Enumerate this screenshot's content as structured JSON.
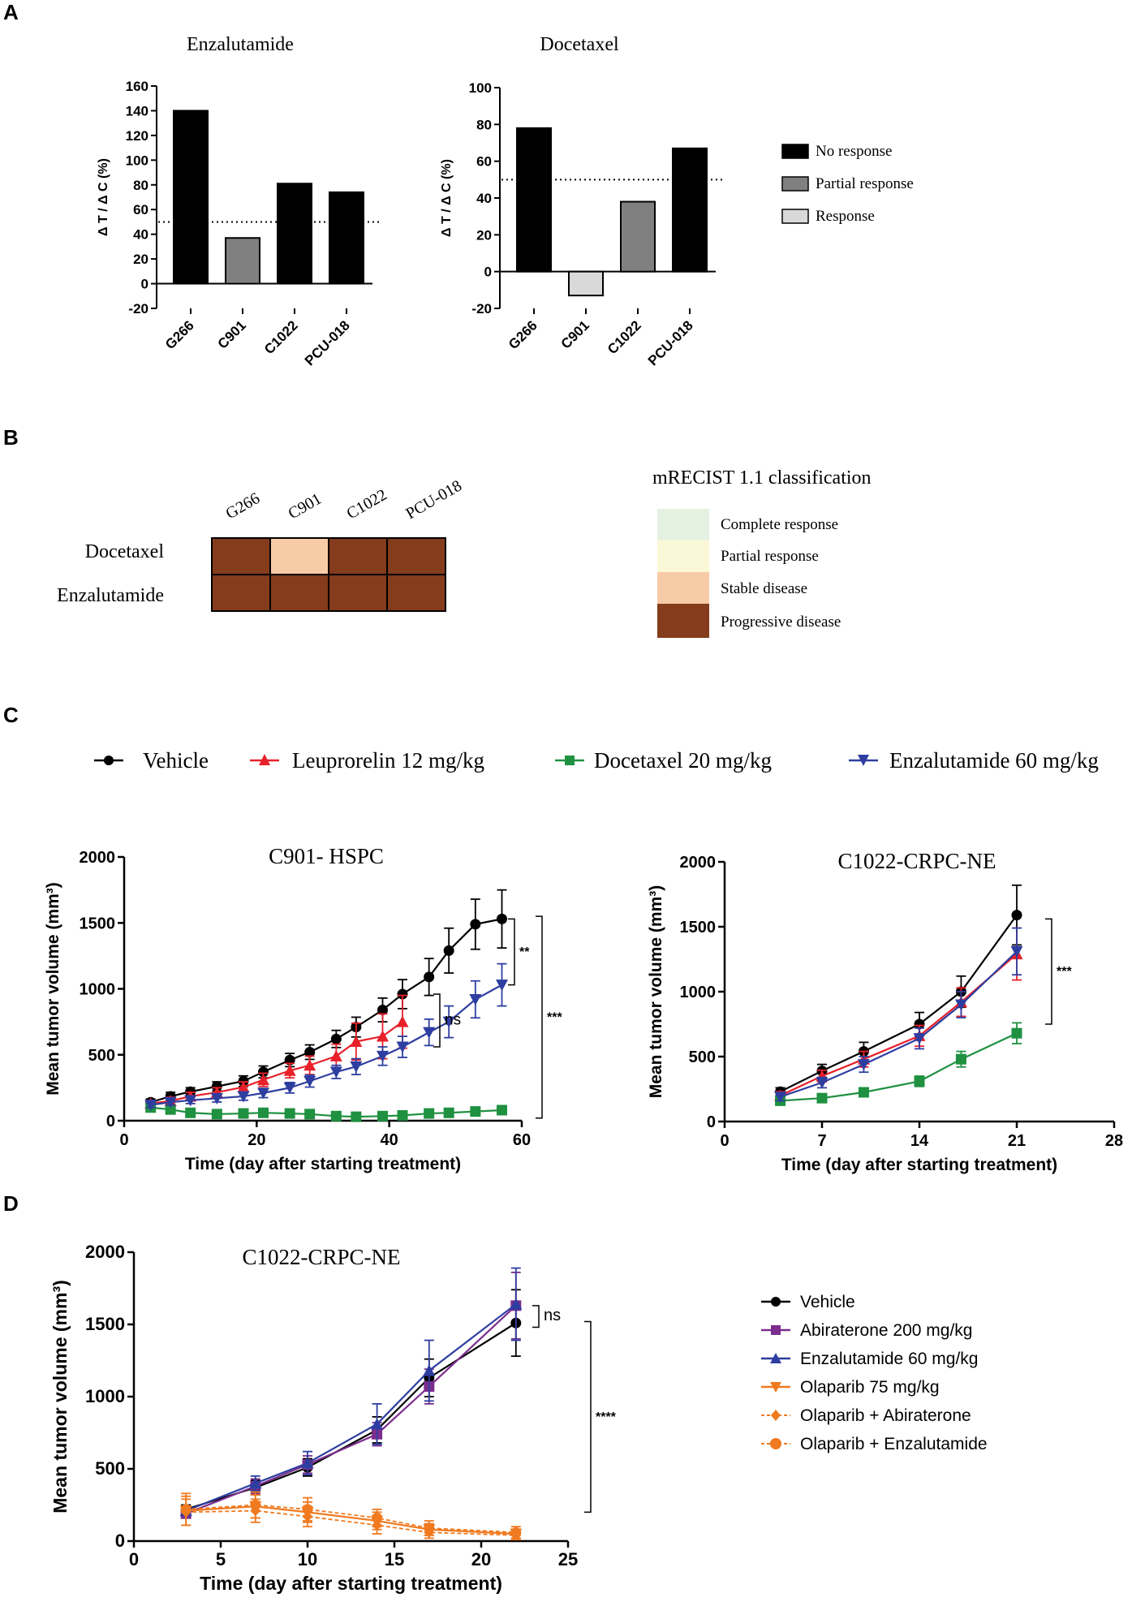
{
  "panels": {
    "A": "A",
    "B": "B",
    "C": "C",
    "D": "D"
  },
  "colors": {
    "no_response": "#000000",
    "partial_response": "#808080",
    "response": "#d9d9d9",
    "complete_response": "#e6f2e1",
    "partial_response_recist": "#fbf8d8",
    "stable_disease": "#f8cba7",
    "progressive_disease": "#843c1c",
    "vehicle": "#000000",
    "leuprorelin": "#e8202a",
    "docetaxel": "#1f9140",
    "enzalutamide": "#2e3ea0",
    "abiraterone": "#7b2d8e",
    "olaparib": "#f07a20"
  },
  "panel_a": {
    "legend": [
      {
        "label": "No response",
        "color": "#000000"
      },
      {
        "label": "Partial response",
        "color": "#808080"
      },
      {
        "label": "Response",
        "color": "#d9d9d9"
      }
    ]
  },
  "panel_b": {
    "columns": [
      "G266",
      "C901",
      "C1022",
      "PCU-018"
    ],
    "rows": [
      {
        "label": "Docetaxel",
        "cells": [
          "Progressive disease",
          "Stable disease",
          "Progressive disease",
          "Progressive disease"
        ]
      },
      {
        "label": "Enzalutamide",
        "cells": [
          "Progressive disease",
          "Progressive disease",
          "Progressive disease",
          "Progressive disease"
        ]
      }
    ],
    "legend_title": "mRECIST 1.1 classification",
    "legend": [
      {
        "label": "Complete response",
        "color": "#e6f2e1"
      },
      {
        "label": "Partial response",
        "color": "#fbf8d8"
      },
      {
        "label": "Stable disease",
        "color": "#f8cba7"
      },
      {
        "label": "Progressive disease",
        "color": "#843c1c"
      }
    ]
  },
  "panel_c": {
    "legend": [
      {
        "label": "Vehicle",
        "color": "#000000",
        "marker": "circle"
      },
      {
        "label": "Leuprorelin 12 mg/kg",
        "color": "#e8202a",
        "marker": "triangle-up"
      },
      {
        "label": "Docetaxel 20 mg/kg",
        "color": "#1f9140",
        "marker": "square"
      },
      {
        "label": "Enzalutamide 60 mg/kg",
        "color": "#2e3ea0",
        "marker": "triangle-down"
      }
    ]
  },
  "panel_d": {
    "legend": [
      {
        "label": "Vehicle",
        "color": "#000000",
        "marker": "circle"
      },
      {
        "label": "Abiraterone 200 mg/kg",
        "color": "#7b2d8e",
        "marker": "square"
      },
      {
        "label": "Enzalutamide 60 mg/kg",
        "color": "#2e3ea0",
        "marker": "triangle-up"
      },
      {
        "label": "Olaparib 75 mg/kg",
        "color": "#f07a20",
        "marker": "triangle-down"
      },
      {
        "label": "Olaparib + Abiraterone",
        "color": "#f07a20",
        "marker": "diamond",
        "dashed": true
      },
      {
        "label": "Olaparib + Enzalutamide",
        "color": "#f07a20",
        "marker": "circle",
        "dashed": true
      }
    ]
  },
  "chart_data": [
    {
      "id": "a1",
      "type": "bar",
      "title": "Enzalutamide",
      "ylabel": "Δ T / Δ C (%)",
      "xlabel": "",
      "categories": [
        "G266",
        "C901",
        "C1022",
        "PCU-018"
      ],
      "values": [
        140,
        37,
        81,
        74
      ],
      "bar_classes": [
        "No response",
        "Partial response",
        "No response",
        "No response"
      ],
      "ylim": [
        -20,
        160
      ],
      "yticks": [
        -20,
        0,
        20,
        40,
        60,
        80,
        100,
        120,
        140,
        160
      ],
      "reference_line": 50
    },
    {
      "id": "a2",
      "type": "bar",
      "title": "Docetaxel",
      "ylabel": "Δ T / Δ C (%)",
      "xlabel": "",
      "categories": [
        "G266",
        "C901",
        "C1022",
        "PCU-018"
      ],
      "values": [
        78,
        -13,
        38,
        67
      ],
      "bar_classes": [
        "No response",
        "Response",
        "Partial response",
        "No response"
      ],
      "ylim": [
        -20,
        100
      ],
      "yticks": [
        -20,
        0,
        20,
        40,
        60,
        80,
        100
      ],
      "reference_line": 50
    },
    {
      "id": "c1",
      "type": "line",
      "title": "C901- HSPC",
      "xlabel": "Time (day after starting treatment)",
      "ylabel": "Mean tumor volume (mm³)",
      "xlim": [
        0,
        60
      ],
      "xticks": [
        0,
        20,
        40,
        60
      ],
      "ylim": [
        0,
        2000
      ],
      "yticks": [
        0,
        500,
        1000,
        1500,
        2000
      ],
      "annotations": [
        "**",
        "ns",
        "***"
      ],
      "series": [
        {
          "name": "Vehicle",
          "color": "#000000",
          "marker": "circle",
          "x": [
            4,
            7,
            10,
            14,
            18,
            21,
            25,
            28,
            32,
            35,
            39,
            42,
            46,
            49,
            53,
            57
          ],
          "y": [
            140,
            185,
            220,
            260,
            300,
            370,
            460,
            520,
            620,
            710,
            840,
            960,
            1090,
            1290,
            1490,
            1530
          ],
          "err": [
            25,
            30,
            30,
            35,
            40,
            45,
            50,
            55,
            65,
            75,
            90,
            110,
            140,
            170,
            190,
            220
          ]
        },
        {
          "name": "Leuprorelin 12 mg/kg",
          "color": "#e8202a",
          "marker": "triangle-up",
          "x": [
            4,
            7,
            10,
            14,
            18,
            21,
            25,
            28,
            32,
            35,
            39,
            42
          ],
          "y": [
            130,
            150,
            185,
            215,
            255,
            310,
            380,
            420,
            490,
            600,
            640,
            750
          ],
          "err": [
            25,
            28,
            30,
            35,
            40,
            50,
            55,
            70,
            90,
            140,
            170,
            200
          ]
        },
        {
          "name": "Docetaxel 20 mg/kg",
          "color": "#1f9140",
          "marker": "square",
          "x": [
            4,
            7,
            10,
            14,
            18,
            21,
            25,
            28,
            32,
            35,
            39,
            42,
            46,
            49,
            53,
            57
          ],
          "y": [
            100,
            85,
            60,
            50,
            55,
            60,
            55,
            50,
            35,
            30,
            35,
            40,
            55,
            60,
            70,
            80
          ],
          "err": [
            20,
            20,
            15,
            15,
            15,
            15,
            15,
            15,
            10,
            10,
            10,
            10,
            15,
            15,
            20,
            20
          ]
        },
        {
          "name": "Enzalutamide 60 mg/kg",
          "color": "#2e3ea0",
          "marker": "triangle-down",
          "x": [
            4,
            7,
            10,
            14,
            18,
            21,
            25,
            28,
            32,
            35,
            39,
            42,
            46,
            49,
            53,
            57
          ],
          "y": [
            120,
            140,
            155,
            170,
            185,
            210,
            250,
            300,
            370,
            410,
            490,
            560,
            670,
            750,
            920,
            1030
          ],
          "err": [
            20,
            22,
            25,
            28,
            30,
            35,
            40,
            45,
            50,
            60,
            70,
            80,
            100,
            120,
            140,
            160
          ]
        }
      ]
    },
    {
      "id": "c2",
      "type": "line",
      "title": "C1022-CRPC-NE",
      "xlabel": "Time (day after starting treatment)",
      "ylabel": "Mean tumor volume (mm³)",
      "xlim": [
        0,
        28
      ],
      "xticks": [
        0,
        7,
        14,
        21,
        28
      ],
      "ylim": [
        0,
        2000
      ],
      "yticks": [
        0,
        500,
        1000,
        1500,
        2000
      ],
      "annotations": [
        "***"
      ],
      "series": [
        {
          "name": "Vehicle",
          "color": "#000000",
          "marker": "circle",
          "x": [
            4,
            7,
            10,
            14,
            17,
            21
          ],
          "y": [
            230,
            390,
            540,
            750,
            1000,
            1590
          ],
          "err": [
            30,
            50,
            70,
            90,
            120,
            230
          ]
        },
        {
          "name": "Leuprorelin 12 mg/kg",
          "color": "#e8202a",
          "marker": "triangle-up",
          "x": [
            4,
            7,
            10,
            14,
            17,
            21
          ],
          "y": [
            200,
            350,
            480,
            660,
            920,
            1290
          ],
          "err": [
            30,
            45,
            60,
            80,
            110,
            200
          ]
        },
        {
          "name": "Docetaxel 20 mg/kg",
          "color": "#1f9140",
          "marker": "square",
          "x": [
            4,
            7,
            10,
            14,
            17,
            21
          ],
          "y": [
            160,
            180,
            225,
            310,
            480,
            680
          ],
          "err": [
            20,
            25,
            30,
            40,
            60,
            80
          ]
        },
        {
          "name": "Enzalutamide 60 mg/kg",
          "color": "#2e3ea0",
          "marker": "triangle-down",
          "x": [
            4,
            7,
            10,
            14,
            17,
            21
          ],
          "y": [
            190,
            300,
            440,
            640,
            900,
            1310
          ],
          "err": [
            30,
            40,
            60,
            80,
            100,
            180
          ]
        }
      ]
    },
    {
      "id": "d1",
      "type": "line",
      "title": "C1022-CRPC-NE",
      "xlabel": "Time (day after starting treatment)",
      "ylabel": "Mean tumor volume (mm³)",
      "xlim": [
        0,
        25
      ],
      "xticks": [
        0,
        5,
        10,
        15,
        20,
        25
      ],
      "ylim": [
        0,
        2000
      ],
      "yticks": [
        0,
        500,
        1000,
        1500,
        2000
      ],
      "annotations": [
        "ns",
        "****"
      ],
      "series": [
        {
          "name": "Vehicle",
          "color": "#000000",
          "marker": "circle",
          "dashed": false,
          "x": [
            3,
            7,
            10,
            14,
            17,
            22
          ],
          "y": [
            220,
            370,
            510,
            770,
            1130,
            1510
          ],
          "err": [
            30,
            50,
            60,
            90,
            130,
            230
          ]
        },
        {
          "name": "Abiraterone 200 mg/kg",
          "color": "#7b2d8e",
          "marker": "square",
          "dashed": false,
          "x": [
            3,
            7,
            10,
            14,
            17,
            22
          ],
          "y": [
            190,
            380,
            530,
            740,
            1070,
            1630
          ],
          "err": [
            30,
            50,
            60,
            80,
            120,
            230
          ]
        },
        {
          "name": "Enzalutamide 60 mg/kg",
          "color": "#2e3ea0",
          "marker": "triangle-up",
          "dashed": false,
          "x": [
            3,
            7,
            10,
            14,
            17,
            22
          ],
          "y": [
            210,
            400,
            540,
            810,
            1180,
            1640
          ],
          "err": [
            30,
            50,
            80,
            140,
            210,
            250
          ]
        },
        {
          "name": "Olaparib 75 mg/kg",
          "color": "#f07a20",
          "marker": "triangle-down",
          "dashed": false,
          "x": [
            3,
            7,
            10,
            14,
            17,
            22
          ],
          "y": [
            210,
            240,
            200,
            140,
            80,
            50
          ],
          "err": [
            100,
            80,
            70,
            60,
            40,
            30
          ]
        },
        {
          "name": "Olaparib + Abiraterone",
          "color": "#f07a20",
          "marker": "diamond",
          "dashed": true,
          "x": [
            3,
            7,
            10,
            14,
            17,
            22
          ],
          "y": [
            200,
            210,
            170,
            110,
            60,
            40
          ],
          "err": [
            90,
            80,
            70,
            60,
            40,
            30
          ]
        },
        {
          "name": "Olaparib + Enzalutamide",
          "color": "#f07a20",
          "marker": "circle",
          "dashed": true,
          "x": [
            3,
            7,
            10,
            14,
            17,
            22
          ],
          "y": [
            220,
            250,
            220,
            160,
            90,
            60
          ],
          "err": [
            110,
            90,
            80,
            60,
            50,
            40
          ]
        }
      ]
    }
  ]
}
